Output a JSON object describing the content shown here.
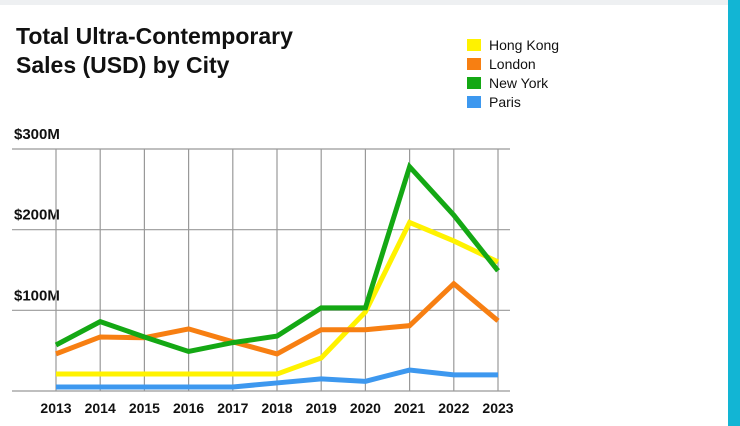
{
  "chart_data": {
    "type": "line",
    "title": "Total Ultra-Contemporary Sales (USD) by City",
    "categories": [
      "2013",
      "2014",
      "2015",
      "2016",
      "2017",
      "2018",
      "2019",
      "2020",
      "2021",
      "2022",
      "2023"
    ],
    "yticks": [
      "$300M",
      "$200M",
      "$100M"
    ],
    "ytick_values": [
      300,
      200,
      100
    ],
    "ylim": [
      0,
      300
    ],
    "unit": "USD millions",
    "grid": true,
    "legend_position": "top-right",
    "series": [
      {
        "name": "Hong Kong",
        "color": "#fff200",
        "values": [
          21,
          21,
          21,
          21,
          21,
          21,
          41,
          98,
          209,
          186,
          160
        ]
      },
      {
        "name": "London",
        "color": "#f77f12",
        "values": [
          46,
          67,
          66,
          77,
          61,
          46,
          76,
          76,
          81,
          133,
          87
        ]
      },
      {
        "name": "New York",
        "color": "#14a814",
        "values": [
          57,
          86,
          67,
          49,
          60,
          68,
          103,
          103,
          278,
          218,
          149
        ]
      },
      {
        "name": "Paris",
        "color": "#3d98ef",
        "values": [
          5,
          5,
          5,
          5,
          5,
          10,
          15,
          12,
          26,
          20,
          20
        ]
      }
    ]
  }
}
